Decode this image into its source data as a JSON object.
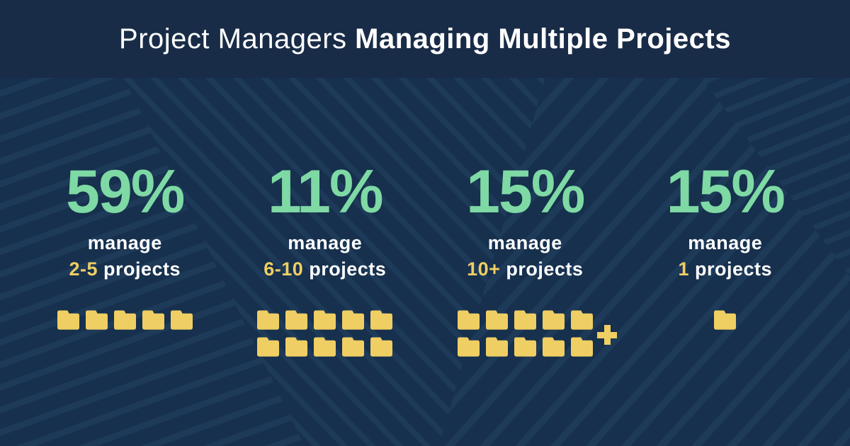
{
  "header": {
    "title_regular": "Project Managers ",
    "title_bold": "Managing Multiple Projects"
  },
  "columns": [
    {
      "percent": "59%",
      "manage_label": "manage",
      "range": "2-5",
      "range_suffix": "projects",
      "folder_rows": [
        5
      ],
      "plus": false
    },
    {
      "percent": "11%",
      "manage_label": "manage",
      "range": "6-10",
      "range_suffix": "projects",
      "folder_rows": [
        5,
        5
      ],
      "plus": false
    },
    {
      "percent": "15%",
      "manage_label": "manage",
      "range": "10+",
      "range_suffix": "projects",
      "folder_rows": [
        5,
        5
      ],
      "plus": true
    },
    {
      "percent": "15%",
      "manage_label": "manage",
      "range": "1",
      "range_suffix": "projects",
      "folder_rows": [
        1
      ],
      "plus": false
    }
  ],
  "chart_data": {
    "type": "bar",
    "variant": "pictograph-folders",
    "title": "Project Managers Managing Multiple Projects",
    "categories": [
      "2-5 projects",
      "6-10 projects",
      "10+ projects",
      "1 projects"
    ],
    "values": [
      59,
      11,
      15,
      15
    ],
    "unit": "%",
    "icon": "folder-icon",
    "icon_counts": [
      5,
      10,
      10,
      1
    ],
    "legend_position": "none",
    "grid": false
  },
  "colors": {
    "bg": "#16304D",
    "stripe": "#1E3A59",
    "header": "#192C47",
    "green": "#7ED9A4",
    "yellow": "#EFCE63",
    "white": "#FFFFFF"
  }
}
